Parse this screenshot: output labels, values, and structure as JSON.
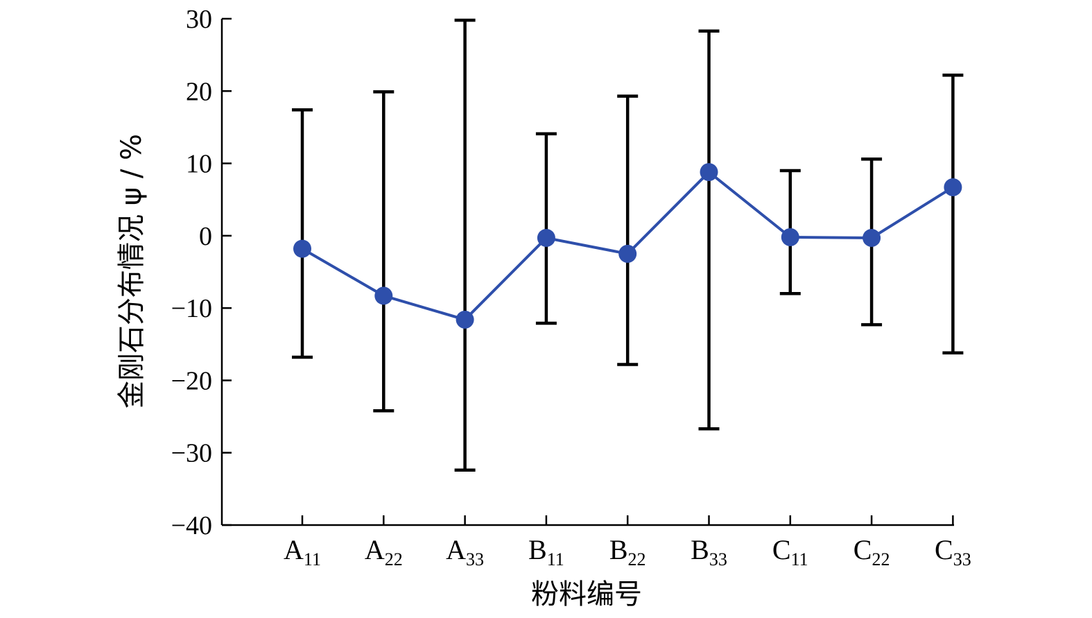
{
  "chart_data": {
    "type": "line",
    "xlabel": "粉料编号",
    "ylabel": "金刚石分布情况 ψ / %",
    "ylim": [
      -40,
      30
    ],
    "yticks": [
      30,
      20,
      10,
      0,
      -10,
      -20,
      -30,
      -40
    ],
    "ytick_labels": [
      "30",
      "20",
      "10",
      "0",
      "−10",
      "−20",
      "−30",
      "−40"
    ],
    "categories": [
      {
        "main": "A",
        "sub": "11"
      },
      {
        "main": "A",
        "sub": "22"
      },
      {
        "main": "A",
        "sub": "33"
      },
      {
        "main": "B",
        "sub": "11"
      },
      {
        "main": "B",
        "sub": "22"
      },
      {
        "main": "B",
        "sub": "33"
      },
      {
        "main": "C",
        "sub": "11"
      },
      {
        "main": "C",
        "sub": "22"
      },
      {
        "main": "C",
        "sub": "33"
      }
    ],
    "series": [
      {
        "values": [
          -1.8,
          -8.3,
          -11.6,
          -0.3,
          -2.5,
          8.8,
          -0.2,
          -0.3,
          6.7
        ],
        "err_upper": [
          17.4,
          19.9,
          29.8,
          14.1,
          19.3,
          28.3,
          9.0,
          10.6,
          22.2
        ],
        "err_lower": [
          -16.8,
          -24.2,
          -32.4,
          -12.1,
          -17.8,
          -26.7,
          -8.0,
          -12.3,
          -16.2
        ],
        "color": "#2e4fab"
      }
    ],
    "grid": false,
    "legend": "none"
  }
}
